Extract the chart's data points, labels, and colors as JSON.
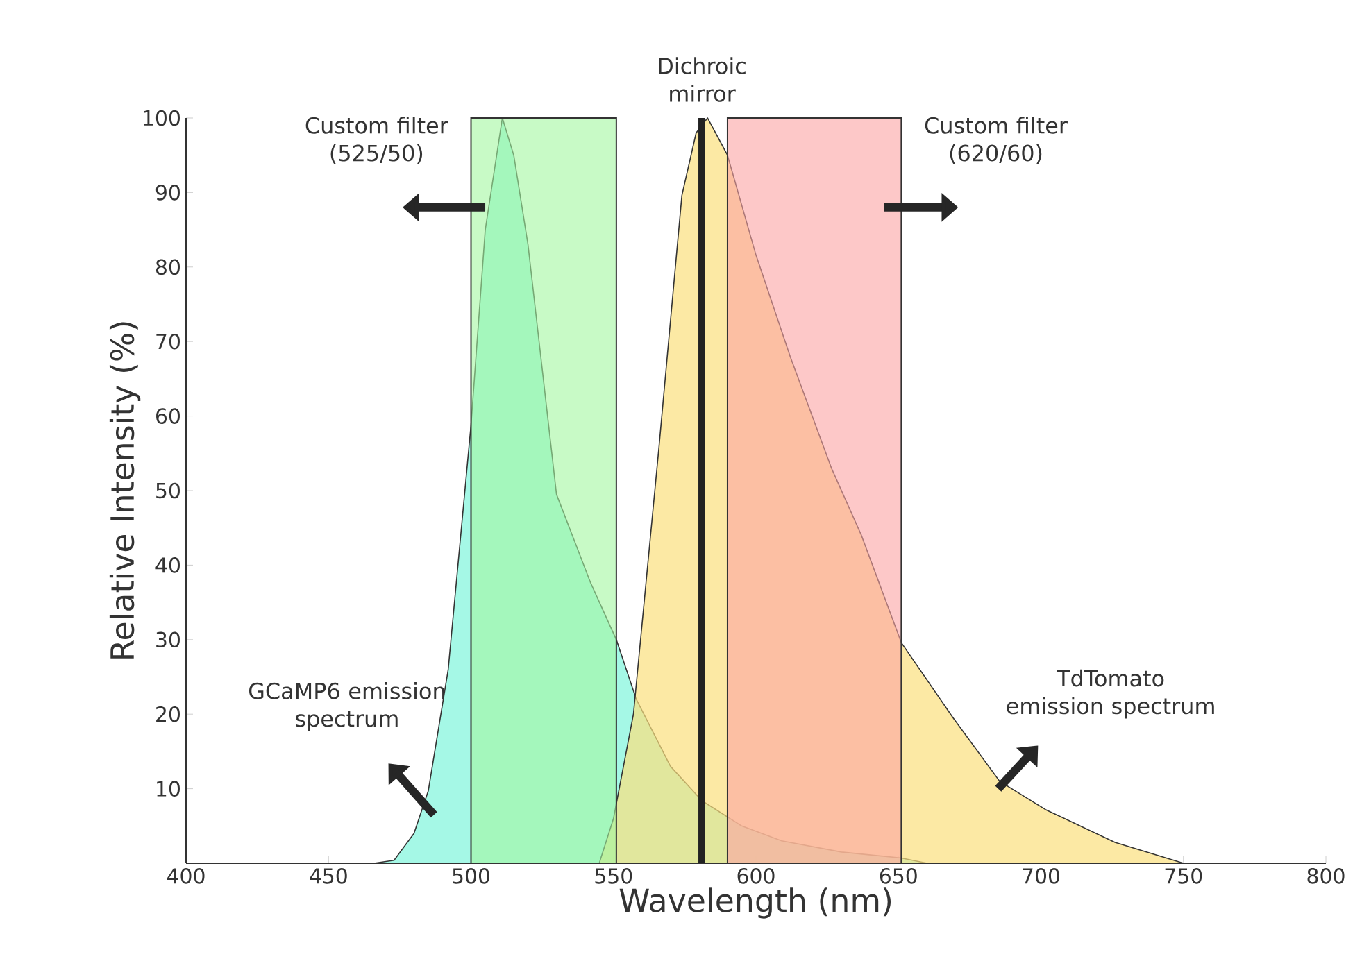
{
  "chart_data": {
    "type": "area",
    "xlabel": "Wavelength (nm)",
    "ylabel": "Relative Intensity (%)",
    "xlim": [
      400,
      800
    ],
    "ylim": [
      0,
      100
    ],
    "xticks": [
      400,
      450,
      500,
      550,
      600,
      650,
      700,
      750,
      800
    ],
    "yticks": [
      10,
      20,
      30,
      40,
      50,
      60,
      70,
      80,
      90,
      100
    ],
    "series": [
      {
        "name": "GCaMP6 emission spectrum",
        "color": "#7ff5dc",
        "x": [
          466,
          473,
          480,
          485,
          492,
          500,
          505,
          511,
          515,
          520,
          530,
          542,
          551,
          558,
          570,
          581,
          595,
          609,
          630,
          651,
          660
        ],
        "values": [
          0,
          0.4,
          4,
          9.7,
          26,
          58.8,
          85,
          100,
          95,
          83,
          49.5,
          37.6,
          30,
          22,
          13,
          8.4,
          5,
          3,
          1.5,
          0.7,
          0
        ]
      },
      {
        "name": "TdTomato emission spectrum",
        "color": "#fbe07e",
        "x": [
          545,
          550,
          557,
          566,
          574,
          579,
          583,
          590,
          600,
          612,
          626.5,
          637,
          651,
          669,
          685.5,
          701.6,
          726,
          750
        ],
        "values": [
          0,
          6,
          20,
          56,
          89.6,
          98,
          100,
          95,
          81.6,
          68,
          53,
          44,
          29.6,
          19.6,
          11,
          7.2,
          2.8,
          0
        ]
      }
    ],
    "bands": [
      {
        "axis": "x",
        "from": 500,
        "to": 551,
        "label": "Custom filter (525/50)",
        "color": "#a4f7a0"
      },
      {
        "axis": "x",
        "from": 590,
        "to": 651,
        "label": "Custom filter (620/60)",
        "color": "#fba4a4"
      }
    ],
    "ref_lines": [
      {
        "axis": "x",
        "value": 581,
        "label": "Dichroic mirror",
        "color": "#222222"
      }
    ]
  }
}
